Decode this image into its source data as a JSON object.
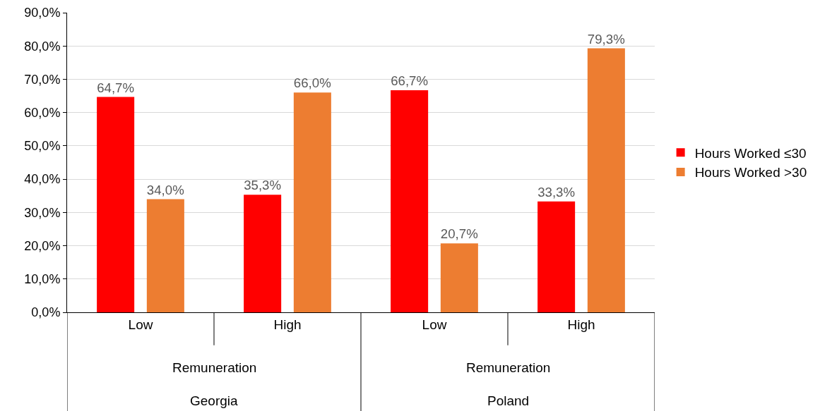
{
  "chart_data": {
    "type": "bar",
    "categories": [
      "Low",
      "High",
      "Low",
      "High"
    ],
    "series": [
      {
        "name": "Hours Worked ≤30",
        "color": "#ff0000",
        "values": [
          64.7,
          35.3,
          66.7,
          33.3
        ],
        "value_labels": [
          "64,7%",
          "35,3%",
          "66,7%",
          "33,3%"
        ]
      },
      {
        "name": "Hours Worked >30",
        "color": "#ed7d31",
        "values": [
          34.0,
          66.0,
          20.7,
          79.3
        ],
        "value_labels": [
          "34,0%",
          "66,0%",
          "20,7%",
          "79,3%"
        ]
      }
    ],
    "annotations": [
      "Remuneration",
      "Remuneration",
      "Georgia",
      "Poland"
    ],
    "ylim": [
      0,
      90
    ],
    "yticks": [
      {
        "value": 0,
        "label": "0,0%"
      },
      {
        "value": 10,
        "label": "10,0%"
      },
      {
        "value": 20,
        "label": "20,0%"
      },
      {
        "value": 30,
        "label": "30,0%"
      },
      {
        "value": 40,
        "label": "40,0%"
      },
      {
        "value": 50,
        "label": "50,0%"
      },
      {
        "value": 60,
        "label": "60,0%"
      },
      {
        "value": 70,
        "label": "70,0%"
      },
      {
        "value": 80,
        "label": "80,0%"
      },
      {
        "value": 90,
        "label": "90,0%"
      }
    ],
    "grid": "y",
    "legend": "right"
  }
}
